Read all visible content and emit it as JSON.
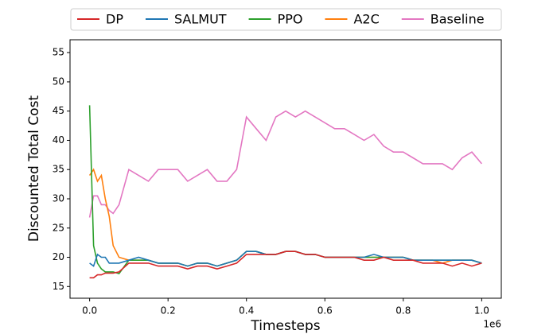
{
  "chart_data": {
    "type": "line",
    "x_label": "Timesteps",
    "y_label": "Discounted Total Cost",
    "x_offset_label": "1e6",
    "x": [
      0,
      0.01,
      0.02,
      0.03,
      0.04,
      0.05,
      0.06,
      0.075,
      0.1,
      0.125,
      0.15,
      0.175,
      0.2,
      0.225,
      0.25,
      0.275,
      0.3,
      0.325,
      0.35,
      0.375,
      0.4,
      0.425,
      0.45,
      0.475,
      0.5,
      0.525,
      0.55,
      0.575,
      0.6,
      0.625,
      0.65,
      0.675,
      0.7,
      0.725,
      0.75,
      0.775,
      0.8,
      0.825,
      0.85,
      0.875,
      0.9,
      0.925,
      0.95,
      0.975,
      1.0
    ],
    "series": [
      {
        "name": "DP",
        "color": "#d62728",
        "values": [
          16.5,
          16.5,
          17,
          17,
          17.3,
          17.3,
          17.3,
          17.5,
          19,
          19,
          19,
          18.5,
          18.5,
          18.5,
          18,
          18.5,
          18.5,
          18,
          18.5,
          19,
          20.5,
          20.5,
          20.5,
          20.5,
          21,
          21,
          20.5,
          20.5,
          20,
          20,
          20,
          20,
          19.5,
          19.5,
          20,
          19.5,
          19.5,
          19.5,
          19,
          19,
          19,
          18.5,
          19,
          18.5,
          19
        ]
      },
      {
        "name": "SALMUT",
        "color": "#1f77b4",
        "values": [
          19,
          18.5,
          20.5,
          20,
          20,
          19,
          19,
          19,
          19.5,
          20,
          19.5,
          19,
          19,
          19,
          18.5,
          19,
          19,
          18.5,
          19,
          19.5,
          21,
          21,
          20.5,
          20.5,
          21,
          21,
          20.5,
          20.5,
          20,
          20,
          20,
          20,
          20,
          20.5,
          20,
          20,
          20,
          19.5,
          19.5,
          19.5,
          19.5,
          19.5,
          19.5,
          19.5,
          19
        ]
      },
      {
        "name": "PPO",
        "color": "#2ca02c",
        "values": [
          46,
          22,
          19,
          18,
          17.5,
          17.5,
          17.5,
          17.2,
          19.5,
          19.5,
          19.5,
          19,
          19,
          19,
          18.5,
          19,
          19,
          18.5,
          19,
          19.5,
          21,
          21,
          20.5,
          20.5,
          21,
          21,
          20.5,
          20.5,
          20,
          20,
          20,
          20,
          20,
          20,
          20,
          20,
          20,
          19.5,
          19.5,
          19.5,
          19.5,
          19.5,
          19.5,
          19.5,
          19
        ]
      },
      {
        "name": "A2C",
        "color": "#ff7f0e",
        "values": [
          34,
          35,
          33,
          34,
          30,
          27,
          22,
          20,
          19.5,
          19.5,
          19.5,
          19,
          19,
          19,
          18.5,
          19,
          19,
          18.5,
          19,
          19.5,
          21,
          21,
          20.5,
          20.5,
          21,
          21,
          20.5,
          20.5,
          20,
          20,
          20,
          20,
          20,
          20,
          20,
          20,
          20,
          19.5,
          19.5,
          19.5,
          19,
          19.5,
          19.5,
          19.5,
          19
        ]
      },
      {
        "name": "Baseline",
        "color": "#e377c2",
        "values": [
          26.8,
          30.5,
          30.5,
          29,
          29,
          28,
          27.5,
          29,
          35,
          34,
          33,
          35,
          35,
          35,
          33,
          34,
          35,
          33,
          33,
          35,
          44,
          42,
          40,
          44,
          45,
          44,
          45,
          44,
          43,
          42,
          42,
          41,
          40,
          41,
          39,
          38,
          38,
          37,
          36,
          36,
          36,
          35,
          37,
          38,
          36
        ]
      }
    ],
    "xlim": [
      -0.05,
      1.05
    ],
    "xticks": [
      {
        "value": 0,
        "label": "0.0"
      },
      {
        "value": 0.2,
        "label": "0.2"
      },
      {
        "value": 0.4,
        "label": "0.4"
      },
      {
        "value": 0.6,
        "label": "0.6"
      },
      {
        "value": 0.8,
        "label": "0.8"
      },
      {
        "value": 1.0,
        "label": "1.0"
      }
    ],
    "ylim": [
      13,
      57.2
    ],
    "yticks": [
      15,
      20,
      25,
      30,
      35,
      40,
      45,
      50,
      55
    ],
    "legend": "top"
  }
}
